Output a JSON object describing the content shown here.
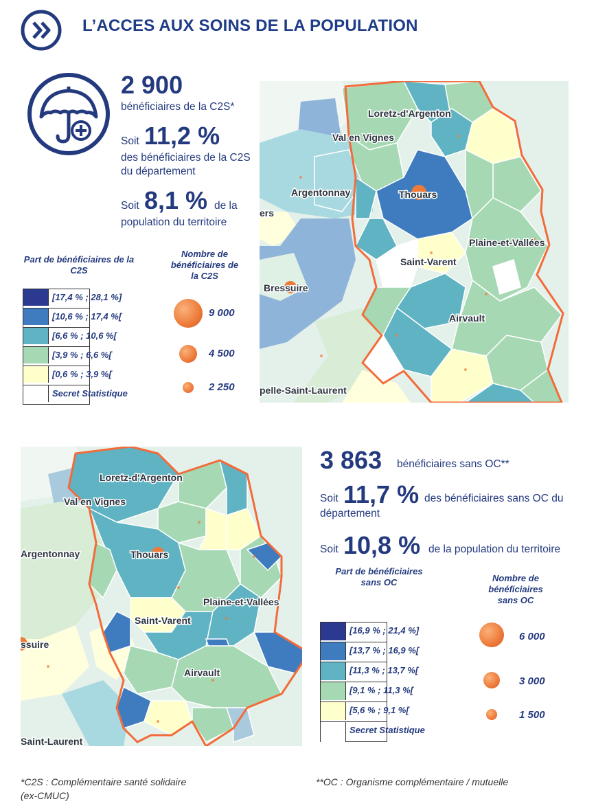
{
  "header": {
    "title": "L’ACCES AUX SOINS DE LA POPULATION"
  },
  "c2s": {
    "count": "2 900",
    "count_suffix": "bénéficiaires de la C2S*",
    "soit1": "Soit",
    "pct_dept": "11,2 %",
    "pct_dept_text": "des bénéficiaires de la C2S du département",
    "soit2": "Soit",
    "pct_pop": "8,1 %",
    "pct_pop_text_a": "de la",
    "pct_pop_text_b": "population du territoire"
  },
  "legend_c2s": {
    "title": "Part de bénéficiaires de la C2S",
    "classes": [
      {
        "label": "[17,4 % ; 28,1 %]",
        "color": "#2b3990"
      },
      {
        "label": "[10,6 % ; 17,4 %[",
        "color": "#3f7cbf"
      },
      {
        "label": "[6,6 % ; 10,6 %[",
        "color": "#5fb3c3"
      },
      {
        "label": "[3,9 % ; 6,6 %[",
        "color": "#a6d8b3"
      },
      {
        "label": "[0,6 % ; 3,9 %[",
        "color": "#ffffcc"
      },
      {
        "label": "Secret Statistique",
        "color": "#ffffff"
      }
    ],
    "size_title": "Nombre de bénéficiaires de la C2S",
    "sizes": [
      {
        "label": "9 000"
      },
      {
        "label": "4 500"
      },
      {
        "label": "2 250"
      }
    ]
  },
  "map1": {
    "places": [
      "Loretz-d'Argenton",
      "Val en Vignes",
      "Argentonnay",
      "Thouars",
      "Plaine-et-Vallées",
      "Saint-Varent",
      "Bressuire",
      "Airvault",
      "pelle-Saint-Laurent",
      "ers"
    ]
  },
  "oc": {
    "count": "3 863",
    "count_suffix": "bénéficiaires sans OC**",
    "soit1": "Soit",
    "pct_dept": "11,7 %",
    "pct_dept_text_a": "des bénéficiaires sans OC du",
    "pct_dept_text_b": "département",
    "soit2": "Soit",
    "pct_pop": "10,8 %",
    "pct_pop_text": "de la population du territoire"
  },
  "legend_oc": {
    "title": "Part de bénéficiaires sans OC",
    "classes": [
      {
        "label": "[16,9 % ; 21,4 %]",
        "color": "#2b3990"
      },
      {
        "label": "[13,7 % ; 16,9 %[",
        "color": "#3f7cbf"
      },
      {
        "label": "[11,3 % ; 13,7 %[",
        "color": "#5fb3c3"
      },
      {
        "label": "[9,1 % ; 11,3 %[",
        "color": "#a6d8b3"
      },
      {
        "label": "[5,6 % ; 9,1 %[",
        "color": "#ffffcc"
      },
      {
        "label": "Secret Statistique",
        "color": "#ffffff"
      }
    ],
    "size_title": "Nombre de bénéficiaires sans OC",
    "sizes": [
      {
        "label": "6 000"
      },
      {
        "label": "3 000"
      },
      {
        "label": "1 500"
      }
    ]
  },
  "map2": {
    "places": [
      "Loretz-d'Argenton",
      "Val en Vignes",
      "Argentonnay",
      "Thouars",
      "Plaine-et-Vallées",
      "Saint-Varent",
      "ssuire",
      "Airvault",
      "Saint-Laurent"
    ]
  },
  "footnotes": {
    "c2s_a": "*C2S : Complémentaire santé solidaire",
    "c2s_b": "(ex-CMUC)",
    "oc": "**OC : Organisme complémentaire / mutuelle"
  },
  "icons": {
    "header": "double-chevron-right-icon",
    "c2s": "umbrella-health-icon"
  },
  "colors": {
    "navy": "#243a7e",
    "border_orange": "#f26b3a",
    "bubble": "#ee7a3a"
  }
}
